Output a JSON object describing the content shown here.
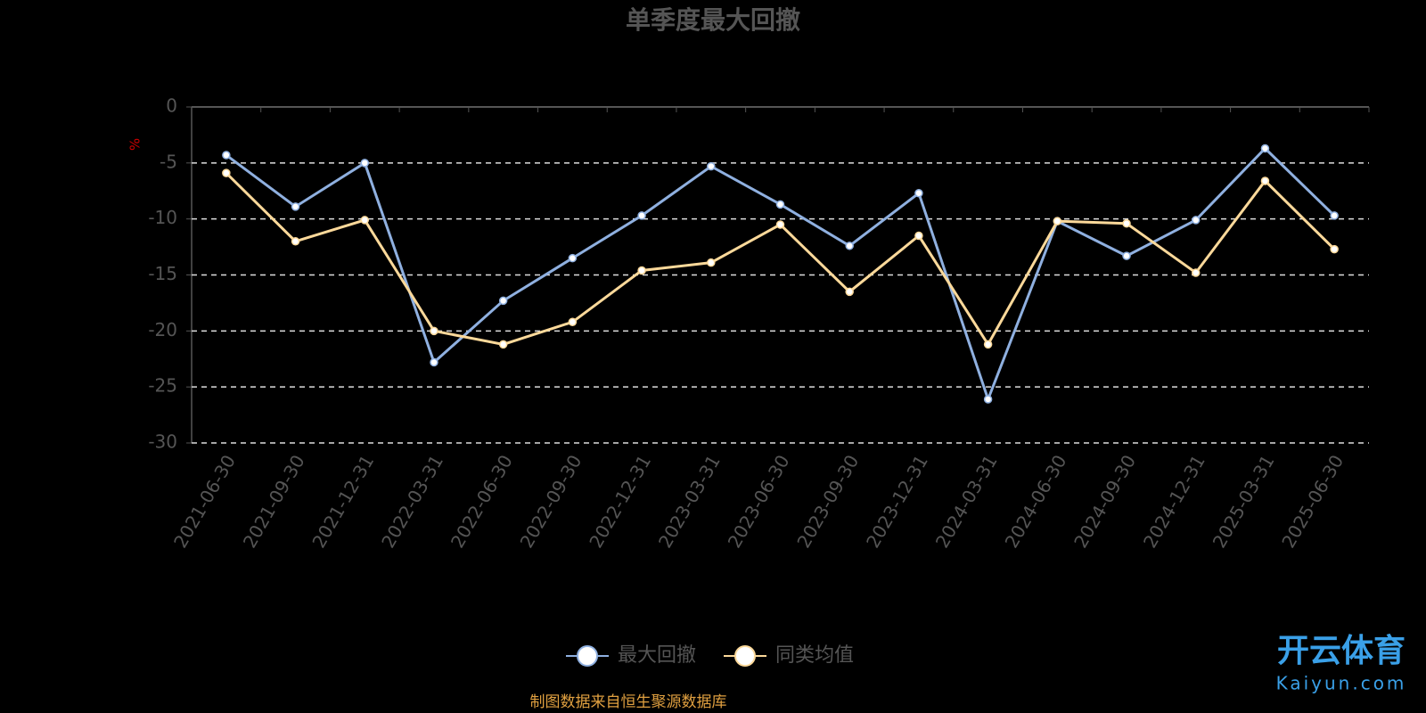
{
  "chart_data": {
    "type": "line",
    "title": "单季度最大回撤",
    "y_label": "%",
    "categories": [
      "2021-06-30",
      "2021-09-30",
      "2021-12-31",
      "2022-03-31",
      "2022-06-30",
      "2022-09-30",
      "2022-12-31",
      "2023-03-31",
      "2023-06-30",
      "2023-09-30",
      "2023-12-31",
      "2024-03-31",
      "2024-06-30",
      "2024-09-30",
      "2024-12-31",
      "2025-03-31",
      "2025-06-30"
    ],
    "series": [
      {
        "name": "最大回撤",
        "color": "#8fb0e0",
        "values": [
          -4.3,
          -8.9,
          -5.0,
          -22.8,
          -17.3,
          -13.5,
          -9.7,
          -5.3,
          -8.7,
          -12.4,
          -7.7,
          -26.1,
          -10.2,
          -13.3,
          -10.1,
          -3.7,
          -9.7
        ]
      },
      {
        "name": "同类均值",
        "color": "#fcd99a",
        "values": [
          -5.9,
          -12.0,
          -10.1,
          -20.0,
          -21.2,
          -19.2,
          -14.6,
          -13.9,
          -10.5,
          -16.5,
          -11.5,
          -21.2,
          -10.2,
          -10.4,
          -14.8,
          -6.6,
          -12.7
        ]
      }
    ],
    "ylim": [
      -30,
      0
    ],
    "yticks": [
      0,
      -5,
      -10,
      -15,
      -20,
      -25,
      -30
    ],
    "grid": true,
    "legend": "bottom",
    "source": "制图数据来自恒生聚源数据库"
  },
  "watermark": {
    "name": "开云体育",
    "url": "Kaiyun.com"
  }
}
